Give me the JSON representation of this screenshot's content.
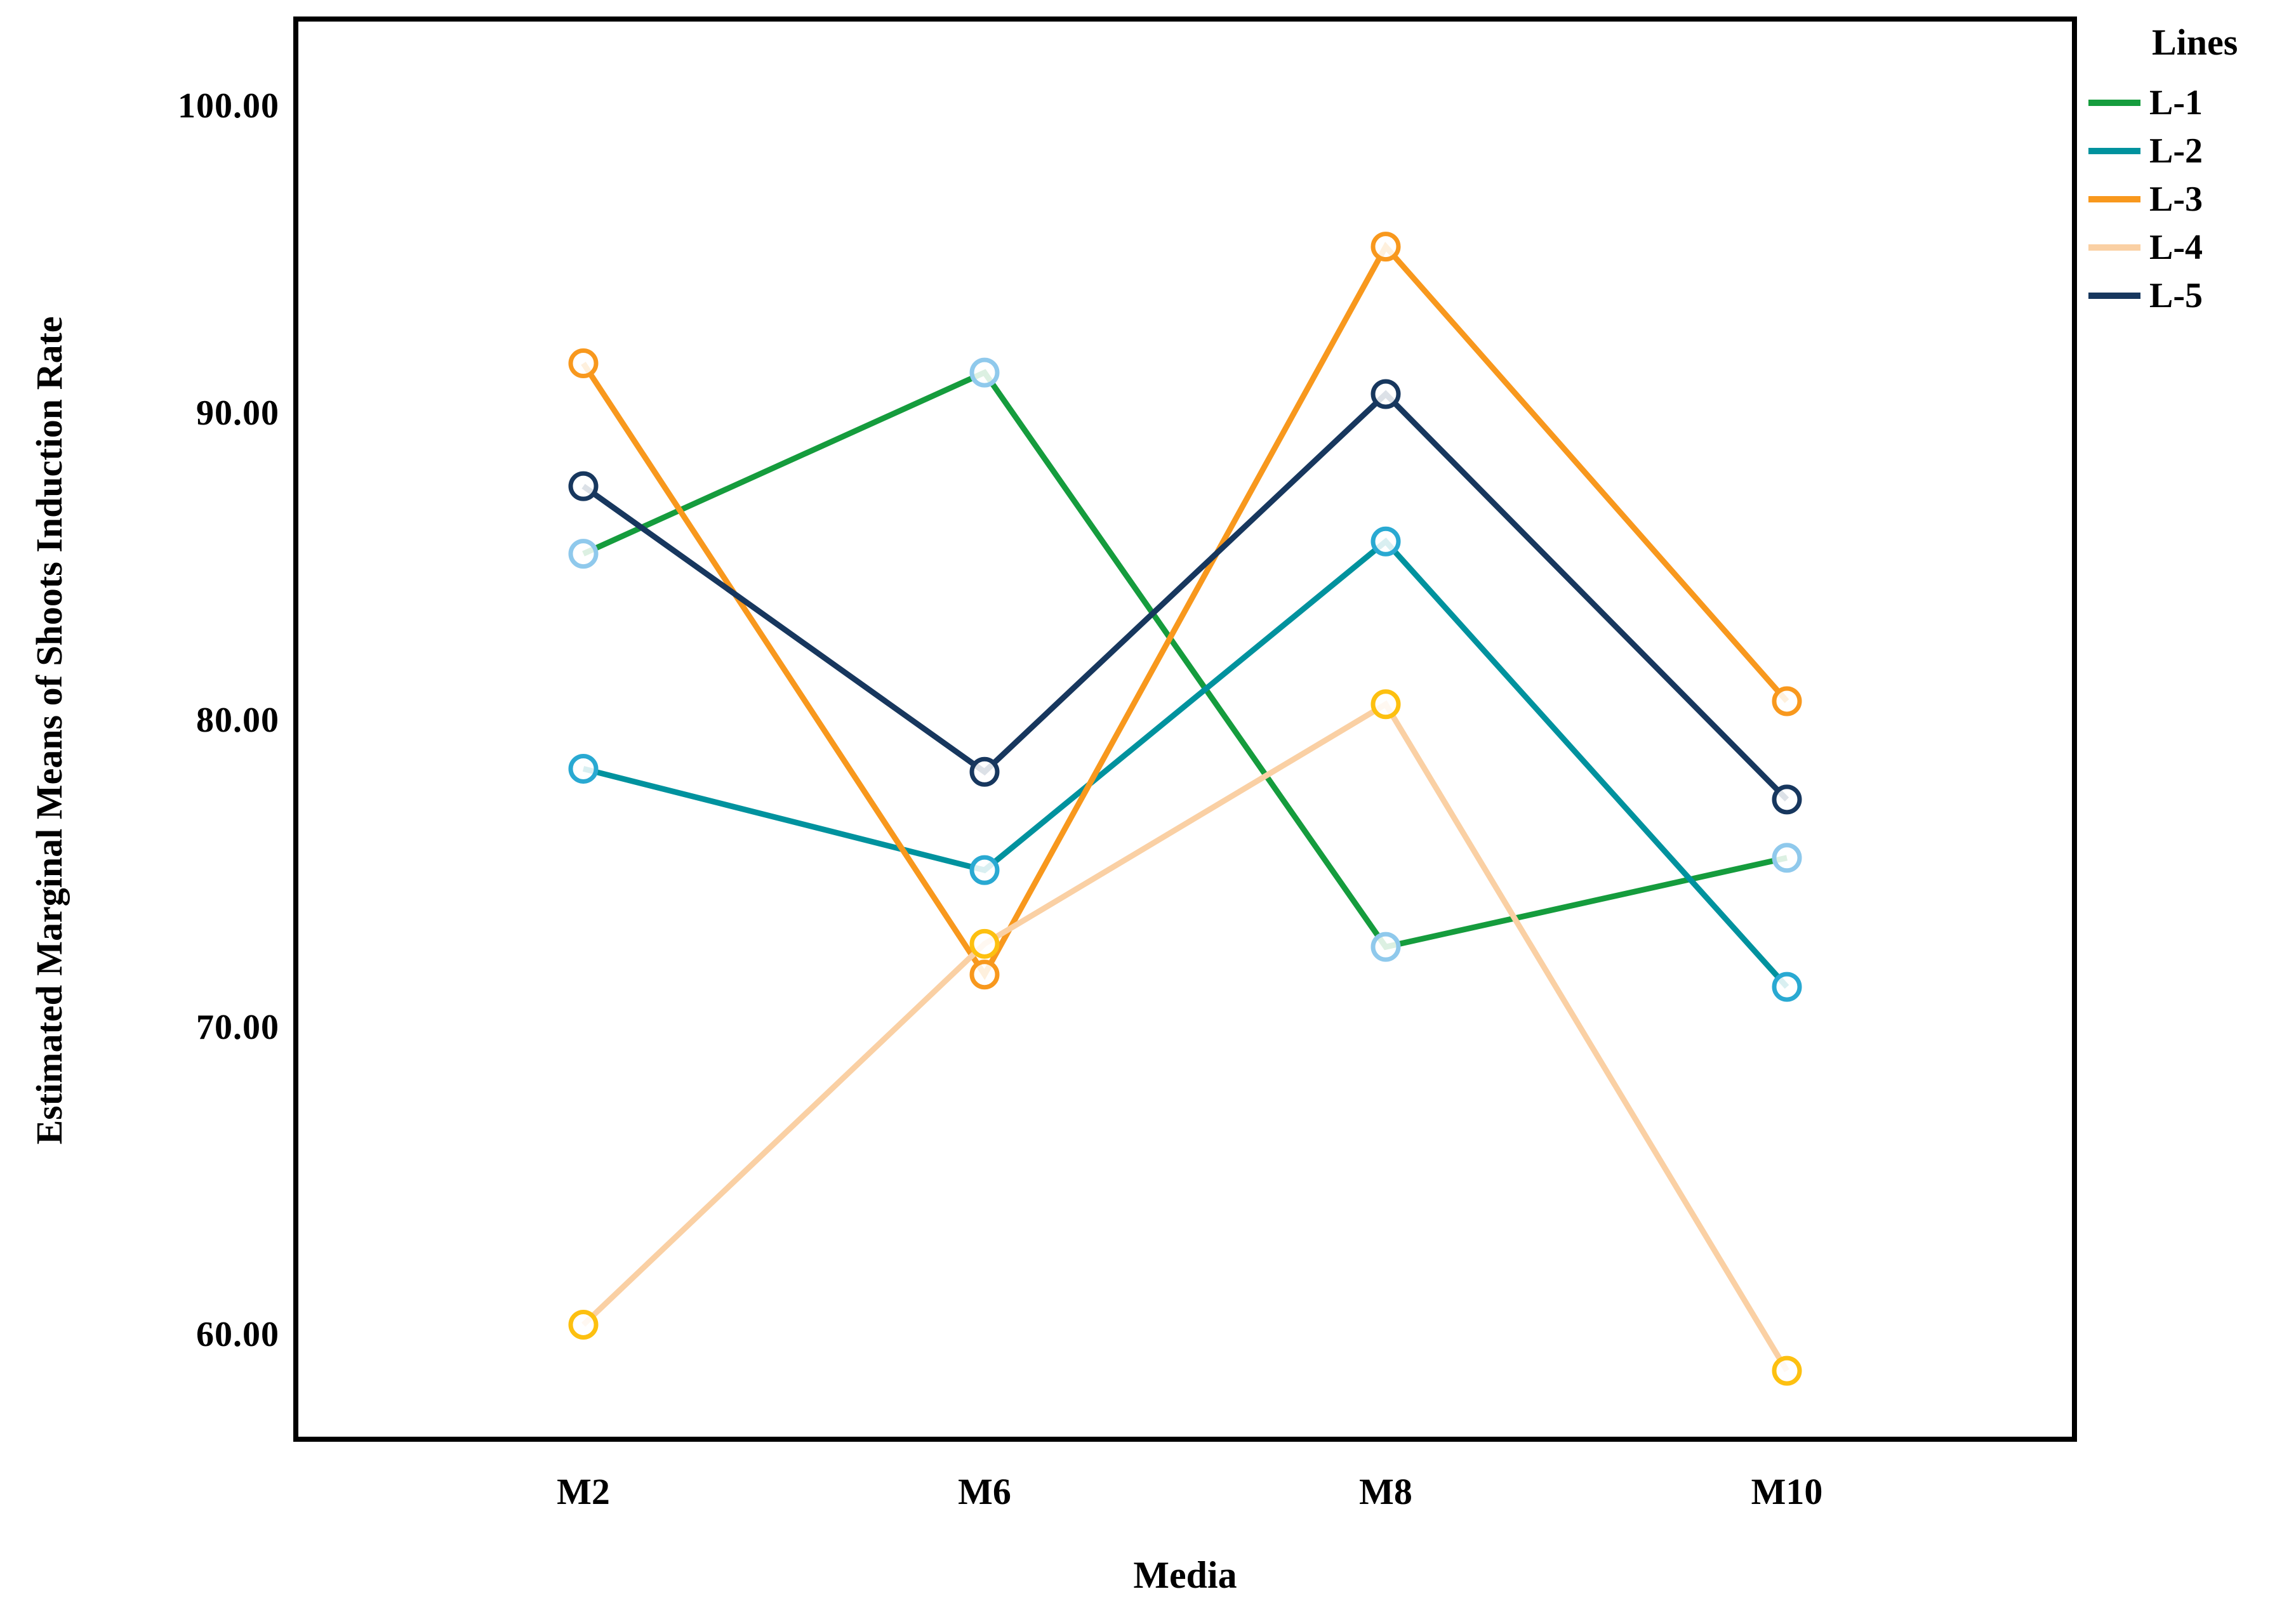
{
  "chart_data": {
    "type": "line",
    "title": "",
    "xlabel": "Media",
    "ylabel": "Estimated Marginal Means of Shoots Induction Rate",
    "legend_title": "Lines",
    "categories": [
      "M2",
      "M6",
      "M8",
      "M10"
    ],
    "ytick_labels": [
      "100.00",
      "90.00",
      "80.00",
      "70.00",
      "60.00"
    ],
    "ytick_values": [
      100,
      90,
      80,
      70,
      60
    ],
    "ylim": [
      56.6,
      102.8
    ],
    "grid": "off",
    "legend_position": "right-top-outside",
    "background_color": "#ffffff",
    "axis_color": "#000000",
    "series": [
      {
        "name": "L-1",
        "line_color": "#159c3d",
        "marker_color": "#8fc9ec",
        "values": [
          85.4,
          91.3,
          72.6,
          75.5
        ]
      },
      {
        "name": "L-2",
        "line_color": "#00929e",
        "marker_color": "#29a9d2",
        "values": [
          78.4,
          75.1,
          85.8,
          71.3
        ]
      },
      {
        "name": "L-3",
        "line_color": "#f8981d",
        "marker_color": "#f8981d",
        "values": [
          91.6,
          71.7,
          95.4,
          80.6
        ]
      },
      {
        "name": "L-4",
        "line_color": "#fad0a4",
        "marker_color": "#fdc010",
        "values": [
          60.3,
          72.7,
          80.5,
          58.8
        ]
      },
      {
        "name": "L-5",
        "line_color": "#17375e",
        "marker_color": "#17375e",
        "values": [
          87.6,
          78.3,
          90.6,
          77.4
        ]
      }
    ]
  }
}
